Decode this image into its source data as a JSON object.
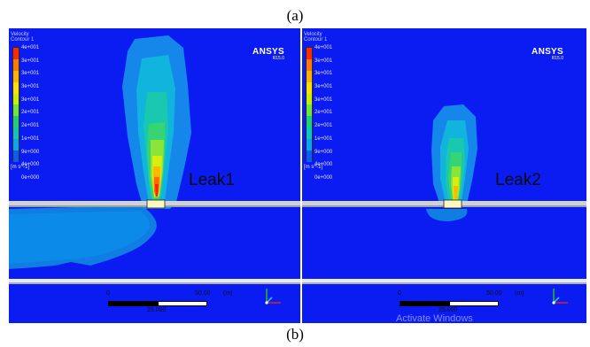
{
  "captions": {
    "top": "(a)",
    "bottom": "(b)"
  },
  "legend": {
    "title": "Velocity",
    "subtitle": "Contour 1",
    "ticks": [
      "4e+001",
      "3e+001",
      "3e+001",
      "3e+001",
      "3e+001",
      "2e+001",
      "2e+001",
      "1e+001",
      "9e+000",
      "4e+000",
      "0e+000"
    ],
    "units": "[m s^-1]",
    "colors": [
      "#ff2a00",
      "#ff7a00",
      "#ffb300",
      "#ffe000",
      "#c8f000",
      "#6fe63a",
      "#1fd07a",
      "#10c6b8",
      "#0aa6e8",
      "#0a5cf2"
    ]
  },
  "brand": {
    "name": "ANSYS",
    "version": "R15.0"
  },
  "panels": {
    "left": {
      "label": "Leak1"
    },
    "right": {
      "label": "Leak2"
    }
  },
  "scale": {
    "tick0": "0",
    "tick1": "50.00",
    "unit": "(m)",
    "mid": "25.000"
  },
  "watermark": "Activate Windows"
}
